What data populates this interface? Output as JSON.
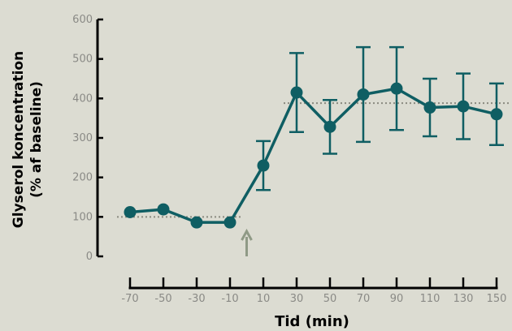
{
  "colors": {
    "background": "#dcdcd2",
    "series": "#0f5e63",
    "axis": "#000000",
    "reference_line": "#8a8a80",
    "arrow": "#8f9a86",
    "tick_label": "#8a8a86"
  },
  "chart_data": {
    "type": "line",
    "title": "",
    "ylabel_line1": "Glyserol koncentration",
    "ylabel_line2": "(% af baseline)",
    "xlabel": "Tid (min)",
    "ylim": [
      0,
      600
    ],
    "yticks": [
      0,
      100,
      200,
      300,
      400,
      500,
      600
    ],
    "x": [
      -70,
      -50,
      -30,
      -10,
      10,
      30,
      50,
      70,
      90,
      110,
      130,
      150
    ],
    "xtick_labels": [
      "-70",
      "-50",
      "-30",
      "-10",
      "10",
      "30",
      "50",
      "70",
      "90",
      "110",
      "130",
      "150"
    ],
    "series": [
      {
        "values": [
          112,
          119,
          86,
          86,
          230,
          415,
          328,
          410,
          425,
          377,
          380,
          360
        ],
        "error": [
          null,
          null,
          null,
          null,
          62,
          100,
          68,
          120,
          105,
          73,
          83,
          78
        ]
      }
    ],
    "reference_lines": [
      {
        "y": 100,
        "x_range": [
          -70,
          -10
        ]
      },
      {
        "y": 388,
        "x_range": [
          30,
          150
        ]
      }
    ],
    "annotation_arrow_x": 0,
    "grid": false,
    "legend": "none"
  }
}
